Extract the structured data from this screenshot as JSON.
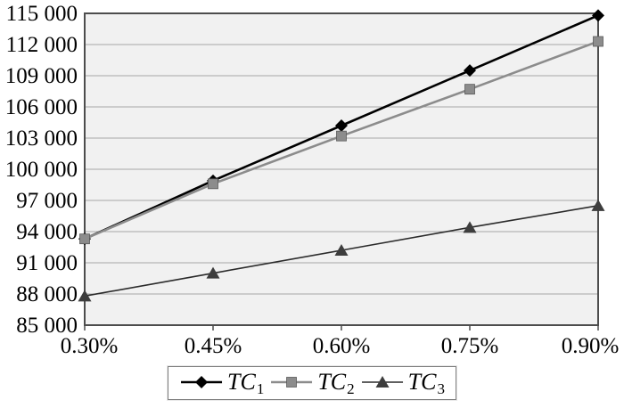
{
  "chart_data": {
    "type": "line",
    "title": "",
    "xlabel": "",
    "ylabel": "",
    "categories": [
      "0.30%",
      "0.45%",
      "0.60%",
      "0.75%",
      "0.90%"
    ],
    "series": [
      {
        "label_main": "TC",
        "label_sub": "1",
        "marker": "diamond",
        "color": "#000000",
        "marker_color": "#000000",
        "line_width": 2.6,
        "values": [
          93300,
          98900,
          104200,
          109500,
          114800
        ]
      },
      {
        "label_main": "TC",
        "label_sub": "2",
        "marker": "square",
        "color": "#8c8c8c",
        "marker_color": "#8c8c8c",
        "line_width": 2.6,
        "values": [
          93300,
          98600,
          103200,
          107700,
          112300
        ]
      },
      {
        "label_main": "TC",
        "label_sub": "3",
        "marker": "triangle",
        "color": "#2b2b2b",
        "marker_color": "#3d3d3d",
        "line_width": 1.6,
        "values": [
          87800,
          90000,
          92200,
          94400,
          96500
        ]
      }
    ],
    "ylim": [
      85000,
      115000
    ],
    "ytick_step": 3000,
    "ytick_labels_top_down": [
      "115 000",
      "112 000",
      "109 000",
      "106 000",
      "103 000",
      "100 000",
      "97 000",
      "94 000",
      "91 000",
      "88 000",
      "85 000"
    ],
    "grid": true,
    "legend_position": "bottom",
    "colors": {
      "page_bg": "#ffffff",
      "plot_bg": "#f1f1f1",
      "grid": "#a8a8a8",
      "border": "#4d4d4d",
      "text": "#000000",
      "legend_border": "#7f7f7f"
    }
  }
}
